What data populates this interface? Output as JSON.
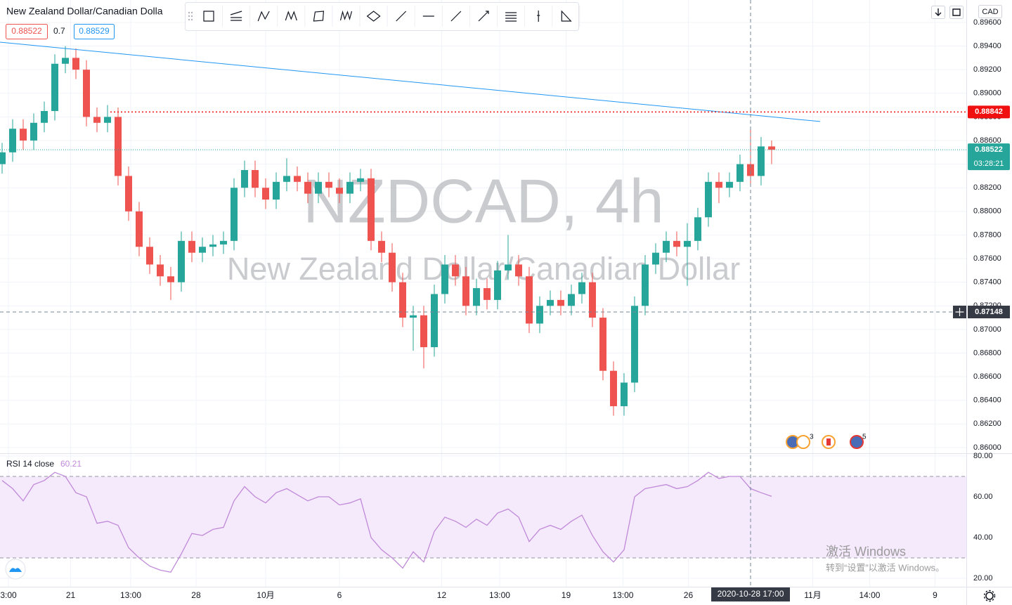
{
  "header": {
    "symbol_title": "New Zealand Dollar/Canadian Dolla",
    "bid": 0.88522,
    "spread": 0.7,
    "ask": 0.88529
  },
  "chart_data": [
    {
      "type": "candlestick",
      "watermark": {
        "title": "NZDCAD, 4h",
        "subtitle": "New Zealand Dollar/Canadian Dollar"
      },
      "currency": "CAD",
      "up_color": "#26a69a",
      "down_color": "#ef5350",
      "grid": true,
      "open": [
        0.884,
        0.885,
        0.887,
        0.886,
        0.8875,
        0.8885,
        0.8925,
        0.893,
        0.892,
        0.888,
        0.8875,
        0.888,
        0.883,
        0.88,
        0.877,
        0.8755,
        0.8745,
        0.874,
        0.8775,
        0.8765,
        0.877,
        0.8772,
        0.8775,
        0.882,
        0.8835,
        0.882,
        0.881,
        0.8825,
        0.883,
        0.8825,
        0.8815,
        0.8825,
        0.882,
        0.8815,
        0.8825,
        0.8828,
        0.8775,
        0.8765,
        0.874,
        0.871,
        0.8712,
        0.8685,
        0.873,
        0.8755,
        0.8745,
        0.872,
        0.8735,
        0.8725,
        0.875,
        0.8755,
        0.8745,
        0.8705,
        0.872,
        0.8725,
        0.872,
        0.873,
        0.874,
        0.871,
        0.8665,
        0.8635,
        0.8655,
        0.872,
        0.8755,
        0.8765,
        0.8775,
        0.877,
        0.8775,
        0.8795,
        0.8825,
        0.882,
        0.8825,
        0.884,
        0.883,
        0.8855
      ],
      "high": [
        0.8858,
        0.8878,
        0.8878,
        0.8883,
        0.8893,
        0.8933,
        0.894,
        0.8938,
        0.8928,
        0.8888,
        0.889,
        0.8888,
        0.8838,
        0.8808,
        0.8778,
        0.8763,
        0.8753,
        0.8783,
        0.8783,
        0.8778,
        0.878,
        0.8783,
        0.8828,
        0.8843,
        0.8843,
        0.8828,
        0.8833,
        0.8845,
        0.8838,
        0.8833,
        0.8833,
        0.8833,
        0.8828,
        0.8833,
        0.8836,
        0.8836,
        0.8783,
        0.8773,
        0.8748,
        0.872,
        0.872,
        0.8738,
        0.8763,
        0.8763,
        0.8753,
        0.8743,
        0.8743,
        0.8758,
        0.878,
        0.8763,
        0.8753,
        0.8728,
        0.8733,
        0.8733,
        0.8738,
        0.8748,
        0.8748,
        0.8718,
        0.8673,
        0.8663,
        0.8728,
        0.8763,
        0.8773,
        0.8783,
        0.8783,
        0.879,
        0.8803,
        0.8833,
        0.8833,
        0.8833,
        0.8848,
        0.887,
        0.8863,
        0.886
      ],
      "low": [
        0.8832,
        0.8842,
        0.8852,
        0.8852,
        0.8867,
        0.8877,
        0.8917,
        0.8912,
        0.8872,
        0.8867,
        0.8867,
        0.8822,
        0.8792,
        0.8762,
        0.8747,
        0.8737,
        0.8725,
        0.8732,
        0.8757,
        0.8757,
        0.8762,
        0.8764,
        0.8767,
        0.8812,
        0.8812,
        0.8802,
        0.8802,
        0.8817,
        0.8817,
        0.8807,
        0.8807,
        0.8812,
        0.8807,
        0.8807,
        0.8817,
        0.8767,
        0.8757,
        0.8732,
        0.8702,
        0.8682,
        0.8667,
        0.8677,
        0.8722,
        0.8737,
        0.8712,
        0.8712,
        0.8717,
        0.8717,
        0.8742,
        0.8737,
        0.8697,
        0.8697,
        0.8712,
        0.8712,
        0.8712,
        0.8722,
        0.8702,
        0.8657,
        0.8627,
        0.8627,
        0.8647,
        0.8712,
        0.8747,
        0.8757,
        0.8762,
        0.8737,
        0.8767,
        0.8787,
        0.8807,
        0.8812,
        0.8817,
        0.8822,
        0.8822,
        0.884
      ],
      "close": [
        0.885,
        0.887,
        0.886,
        0.8875,
        0.8885,
        0.8925,
        0.893,
        0.892,
        0.888,
        0.8875,
        0.888,
        0.883,
        0.88,
        0.877,
        0.8755,
        0.8745,
        0.874,
        0.8775,
        0.8765,
        0.877,
        0.8772,
        0.8775,
        0.882,
        0.8835,
        0.882,
        0.881,
        0.8825,
        0.883,
        0.8825,
        0.8815,
        0.8825,
        0.882,
        0.8815,
        0.8825,
        0.8828,
        0.8775,
        0.8765,
        0.874,
        0.871,
        0.8712,
        0.8685,
        0.873,
        0.8755,
        0.8745,
        0.872,
        0.8735,
        0.8725,
        0.875,
        0.8755,
        0.8745,
        0.8705,
        0.872,
        0.8725,
        0.872,
        0.873,
        0.874,
        0.871,
        0.8665,
        0.8635,
        0.8655,
        0.872,
        0.8755,
        0.8765,
        0.8775,
        0.877,
        0.8775,
        0.8795,
        0.8825,
        0.882,
        0.8825,
        0.884,
        0.883,
        0.8855,
        0.88522
      ],
      "xlim": [
        -0.2,
        91.47
      ],
      "xticks": [
        {
          "value": 0.6,
          "label": "3:00"
        },
        {
          "value": 6.5,
          "label": "21"
        },
        {
          "value": 12.2,
          "label": "13:00"
        },
        {
          "value": 18.4,
          "label": "28"
        },
        {
          "value": 25,
          "label": "10月"
        },
        {
          "value": 32,
          "label": "6"
        },
        {
          "value": 41.7,
          "label": "12"
        },
        {
          "value": 47.2,
          "label": "13:00"
        },
        {
          "value": 53.5,
          "label": "19"
        },
        {
          "value": 58.9,
          "label": "13:00"
        },
        {
          "value": 65.1,
          "label": "26"
        },
        {
          "value": 76.9,
          "label": "11月"
        },
        {
          "value": 82.3,
          "label": "14:00"
        },
        {
          "value": 88.5,
          "label": "9"
        }
      ],
      "ylim": [
        0.85952,
        0.8979
      ],
      "yticks": [
        {
          "value": 0.86,
          "label": "0.86000"
        },
        {
          "value": 0.862,
          "label": "0.86200"
        },
        {
          "value": 0.864,
          "label": "0.86400"
        },
        {
          "value": 0.866,
          "label": "0.86600"
        },
        {
          "value": 0.868,
          "label": "0.86800"
        },
        {
          "value": 0.87,
          "label": "0.87000"
        },
        {
          "value": 0.872,
          "label": "0.87200"
        },
        {
          "value": 0.874,
          "label": "0.87400"
        },
        {
          "value": 0.876,
          "label": "0.87600"
        },
        {
          "value": 0.878,
          "label": "0.87800"
        },
        {
          "value": 0.88,
          "label": "0.88000"
        },
        {
          "value": 0.882,
          "label": "0.88200"
        },
        {
          "value": 0.884,
          "label": "0.88400"
        },
        {
          "value": 0.886,
          "label": "0.88600"
        },
        {
          "value": 0.888,
          "label": "0.88800"
        },
        {
          "value": 0.89,
          "label": "0.89000"
        },
        {
          "value": 0.892,
          "label": "0.89200"
        },
        {
          "value": 0.894,
          "label": "0.89400"
        },
        {
          "value": 0.896,
          "label": "0.89600"
        }
      ],
      "trendline": {
        "color": "#2196f3",
        "x": [
          -0.2,
          77.6
        ],
        "y": [
          0.89433,
          0.88761
        ]
      },
      "alert_line": {
        "color": "#f01010",
        "value": 0.88842
      },
      "last_price": 0.88522,
      "countdown": "03:28:21",
      "crosshair": {
        "price": 0.87148,
        "time_label": "2020-10-28 17:00"
      },
      "event_badges": [
        "3",
        "5"
      ]
    },
    {
      "type": "line",
      "name": "RSI 14 close",
      "color": "#c08ad8",
      "band_color": "#f5e9fc",
      "upper_band": 70,
      "lower_band": 30,
      "values": [
        68,
        64,
        58,
        66,
        68,
        72,
        70,
        62,
        60,
        47,
        48,
        46,
        35,
        30,
        26,
        24,
        23,
        32,
        42,
        41,
        44,
        45,
        58,
        65,
        60,
        57,
        62,
        64,
        61,
        58,
        60,
        60,
        56,
        57,
        59,
        40,
        34,
        30,
        25,
        33,
        28,
        43,
        50,
        48,
        45,
        49,
        46,
        52,
        54,
        50,
        38,
        44,
        46,
        44,
        48,
        51,
        41,
        33,
        28,
        34,
        60,
        64,
        65,
        66,
        64,
        65,
        68,
        72,
        69,
        70,
        70,
        64,
        62,
        60.21
      ],
      "ylim": [
        15.86,
        81.38
      ],
      "yticks": [
        {
          "value": 20,
          "label": "20.00"
        },
        {
          "value": 40,
          "label": "40.00"
        },
        {
          "value": 60,
          "label": "60.00"
        },
        {
          "value": 80,
          "label": "80.00"
        }
      ]
    }
  ],
  "os_notice": {
    "title": "激活 Windows",
    "body": "转到“设置”以激活 Windows。"
  }
}
